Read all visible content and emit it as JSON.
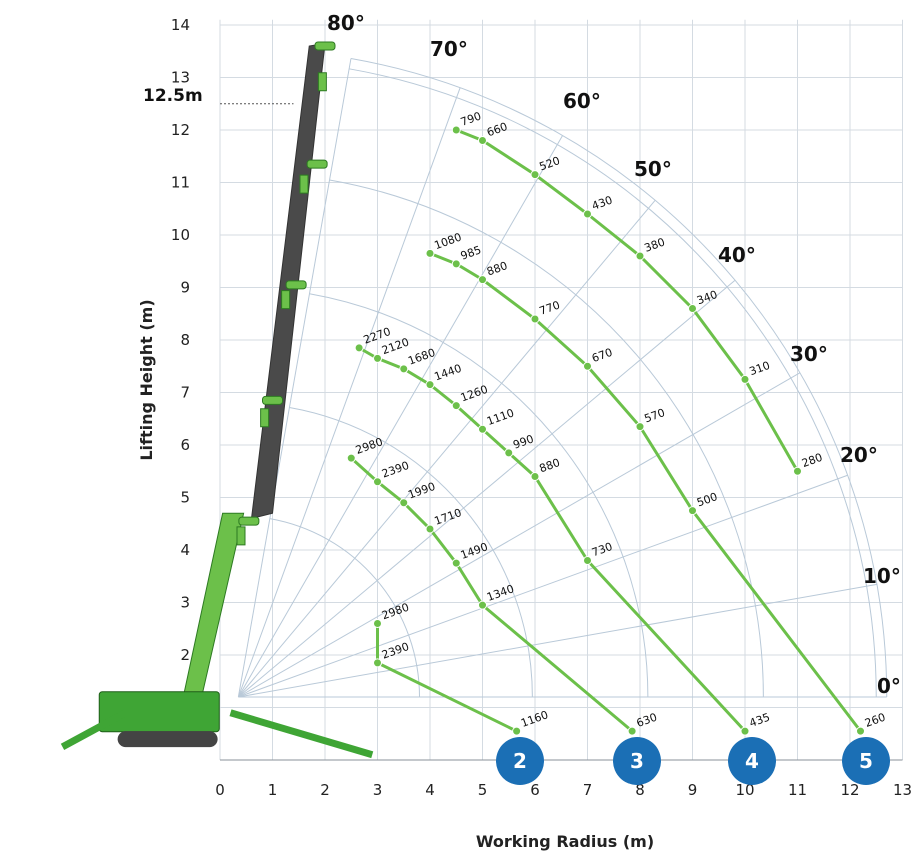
{
  "chart_data": {
    "type": "scatter",
    "title": "",
    "xlabel": "Working Radius (m)",
    "ylabel": "Lifting Height (m)",
    "xlim": [
      0,
      13
    ],
    "ylim": [
      0,
      14
    ],
    "x_ticks": [
      "0",
      "1",
      "2",
      "3",
      "4",
      "5",
      "6",
      "7",
      "8",
      "9",
      "10",
      "11",
      "12",
      "13"
    ],
    "y_ticks": [
      "2",
      "3",
      "4",
      "5",
      "6",
      "7",
      "8",
      "9",
      "10",
      "11",
      "12",
      "13",
      "14"
    ],
    "max_height_label": "12.5m",
    "max_height_value": 12.5,
    "boom_angles": [
      "0°",
      "10°",
      "20°",
      "30°",
      "40°",
      "50°",
      "60°",
      "70°",
      "80°"
    ],
    "boom_sections": [
      "2",
      "3",
      "4",
      "5"
    ],
    "accent_color": "#6cc04a",
    "marker_color": "#1b6fb5",
    "series": [
      {
        "name": "2",
        "points": [
          {
            "x": 3.0,
            "y": 2.6,
            "label": "2980"
          },
          {
            "x": 3.0,
            "y": 1.85,
            "label": "2390"
          },
          {
            "x": 5.65,
            "y": 0.55,
            "label": "1160"
          }
        ]
      },
      {
        "name": "3",
        "points": [
          {
            "x": 2.5,
            "y": 5.75,
            "label": "2980"
          },
          {
            "x": 3.0,
            "y": 5.3,
            "label": "2390"
          },
          {
            "x": 3.5,
            "y": 4.9,
            "label": "1990"
          },
          {
            "x": 4.0,
            "y": 4.4,
            "label": "1710"
          },
          {
            "x": 4.5,
            "y": 3.75,
            "label": "1490"
          },
          {
            "x": 5.0,
            "y": 2.95,
            "label": "1340"
          },
          {
            "x": 7.85,
            "y": 0.55,
            "label": "630"
          }
        ]
      },
      {
        "name": "4",
        "points": [
          {
            "x": 2.65,
            "y": 7.85,
            "label": "2270"
          },
          {
            "x": 3.0,
            "y": 7.65,
            "label": "2120"
          },
          {
            "x": 3.5,
            "y": 7.45,
            "label": "1680"
          },
          {
            "x": 4.0,
            "y": 7.15,
            "label": "1440"
          },
          {
            "x": 4.5,
            "y": 6.75,
            "label": "1260"
          },
          {
            "x": 5.0,
            "y": 6.3,
            "label": "1110"
          },
          {
            "x": 5.5,
            "y": 5.85,
            "label": "990"
          },
          {
            "x": 6.0,
            "y": 5.4,
            "label": "880"
          },
          {
            "x": 7.0,
            "y": 3.8,
            "label": "730"
          },
          {
            "x": 10.0,
            "y": 0.55,
            "label": "435"
          }
        ]
      },
      {
        "name": "5",
        "points": [
          {
            "x": 4.0,
            "y": 9.65,
            "label": "1080"
          },
          {
            "x": 4.5,
            "y": 9.45,
            "label": "985"
          },
          {
            "x": 5.0,
            "y": 9.15,
            "label": "880"
          },
          {
            "x": 6.0,
            "y": 8.4,
            "label": "770"
          },
          {
            "x": 7.0,
            "y": 7.5,
            "label": "670"
          },
          {
            "x": 8.0,
            "y": 6.35,
            "label": "570"
          },
          {
            "x": 9.0,
            "y": 4.75,
            "label": "500"
          },
          {
            "x": 12.2,
            "y": 0.55,
            "label": "260"
          }
        ]
      },
      {
        "name": "5-top",
        "points": [
          {
            "x": 4.5,
            "y": 12.0,
            "label": "790"
          },
          {
            "x": 5.0,
            "y": 11.8,
            "label": "660"
          },
          {
            "x": 6.0,
            "y": 11.15,
            "label": "520"
          },
          {
            "x": 7.0,
            "y": 10.4,
            "label": "430"
          },
          {
            "x": 8.0,
            "y": 9.6,
            "label": "380"
          },
          {
            "x": 9.0,
            "y": 8.6,
            "label": "340"
          },
          {
            "x": 10.0,
            "y": 7.25,
            "label": "310"
          },
          {
            "x": 11.0,
            "y": 5.5,
            "label": "280"
          }
        ]
      }
    ]
  }
}
